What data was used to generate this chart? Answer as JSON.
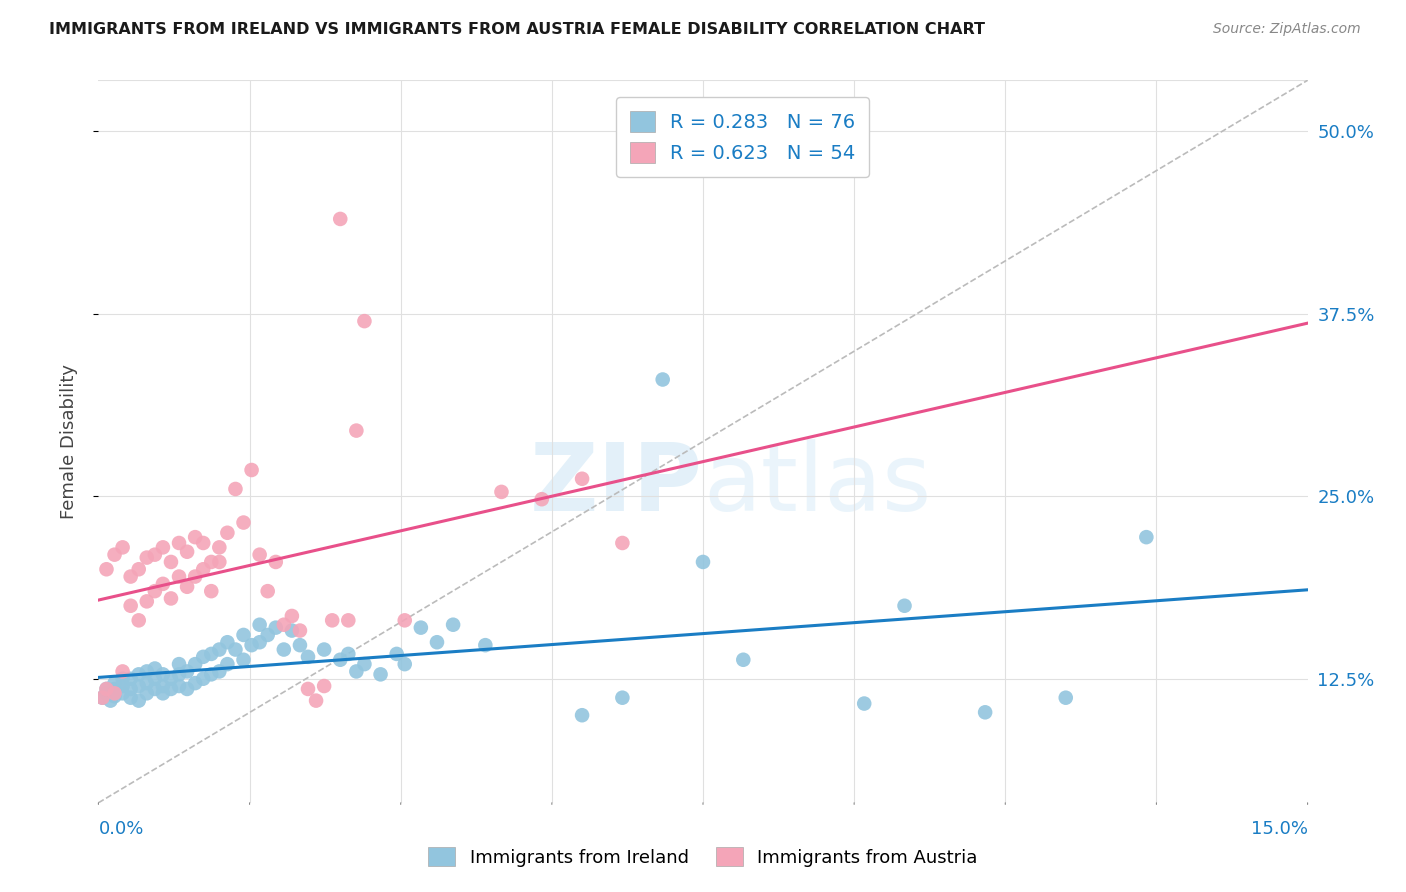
{
  "title": "IMMIGRANTS FROM IRELAND VS IMMIGRANTS FROM AUSTRIA FEMALE DISABILITY CORRELATION CHART",
  "source": "Source: ZipAtlas.com",
  "ylabel": "Female Disability",
  "ytick_values": [
    0.125,
    0.25,
    0.375,
    0.5
  ],
  "xlim": [
    0.0,
    0.15
  ],
  "ylim": [
    0.04,
    0.535
  ],
  "ireland_color": "#92c5de",
  "austria_color": "#f4a5b8",
  "ireland_line_color": "#1a7dc4",
  "austria_line_color": "#e8508a",
  "ireland_R": 0.283,
  "ireland_N": 76,
  "austria_R": 0.623,
  "austria_N": 54,
  "background_color": "#ffffff",
  "grid_color": "#e0e0e0",
  "ireland_scatter_x": [
    0.0005,
    0.001,
    0.001,
    0.0015,
    0.002,
    0.002,
    0.002,
    0.003,
    0.003,
    0.003,
    0.004,
    0.004,
    0.004,
    0.005,
    0.005,
    0.005,
    0.006,
    0.006,
    0.006,
    0.007,
    0.007,
    0.007,
    0.008,
    0.008,
    0.008,
    0.009,
    0.009,
    0.01,
    0.01,
    0.01,
    0.011,
    0.011,
    0.012,
    0.012,
    0.013,
    0.013,
    0.014,
    0.014,
    0.015,
    0.015,
    0.016,
    0.016,
    0.017,
    0.018,
    0.018,
    0.019,
    0.02,
    0.02,
    0.021,
    0.022,
    0.023,
    0.024,
    0.025,
    0.026,
    0.028,
    0.03,
    0.031,
    0.032,
    0.033,
    0.035,
    0.037,
    0.038,
    0.04,
    0.042,
    0.044,
    0.048,
    0.06,
    0.065,
    0.07,
    0.075,
    0.08,
    0.095,
    0.1,
    0.11,
    0.12,
    0.13
  ],
  "ireland_scatter_y": [
    0.112,
    0.115,
    0.118,
    0.11,
    0.113,
    0.118,
    0.122,
    0.115,
    0.12,
    0.125,
    0.112,
    0.118,
    0.125,
    0.11,
    0.12,
    0.128,
    0.115,
    0.122,
    0.13,
    0.118,
    0.125,
    0.132,
    0.115,
    0.12,
    0.128,
    0.118,
    0.125,
    0.12,
    0.128,
    0.135,
    0.118,
    0.13,
    0.122,
    0.135,
    0.125,
    0.14,
    0.128,
    0.142,
    0.13,
    0.145,
    0.135,
    0.15,
    0.145,
    0.138,
    0.155,
    0.148,
    0.15,
    0.162,
    0.155,
    0.16,
    0.145,
    0.158,
    0.148,
    0.14,
    0.145,
    0.138,
    0.142,
    0.13,
    0.135,
    0.128,
    0.142,
    0.135,
    0.16,
    0.15,
    0.162,
    0.148,
    0.1,
    0.112,
    0.33,
    0.205,
    0.138,
    0.108,
    0.175,
    0.102,
    0.112,
    0.222
  ],
  "austria_scatter_x": [
    0.0005,
    0.001,
    0.001,
    0.002,
    0.002,
    0.003,
    0.003,
    0.004,
    0.004,
    0.005,
    0.005,
    0.006,
    0.006,
    0.007,
    0.007,
    0.008,
    0.008,
    0.009,
    0.009,
    0.01,
    0.01,
    0.011,
    0.011,
    0.012,
    0.012,
    0.013,
    0.013,
    0.014,
    0.014,
    0.015,
    0.015,
    0.016,
    0.017,
    0.018,
    0.019,
    0.02,
    0.021,
    0.022,
    0.023,
    0.024,
    0.025,
    0.026,
    0.027,
    0.028,
    0.029,
    0.03,
    0.031,
    0.032,
    0.033,
    0.038,
    0.05,
    0.055,
    0.06,
    0.065
  ],
  "austria_scatter_y": [
    0.112,
    0.118,
    0.2,
    0.115,
    0.21,
    0.13,
    0.215,
    0.175,
    0.195,
    0.165,
    0.2,
    0.178,
    0.208,
    0.185,
    0.21,
    0.19,
    0.215,
    0.18,
    0.205,
    0.195,
    0.218,
    0.188,
    0.212,
    0.195,
    0.222,
    0.2,
    0.218,
    0.205,
    0.185,
    0.205,
    0.215,
    0.225,
    0.255,
    0.232,
    0.268,
    0.21,
    0.185,
    0.205,
    0.162,
    0.168,
    0.158,
    0.118,
    0.11,
    0.12,
    0.165,
    0.44,
    0.165,
    0.295,
    0.37,
    0.165,
    0.253,
    0.248,
    0.262,
    0.218
  ]
}
